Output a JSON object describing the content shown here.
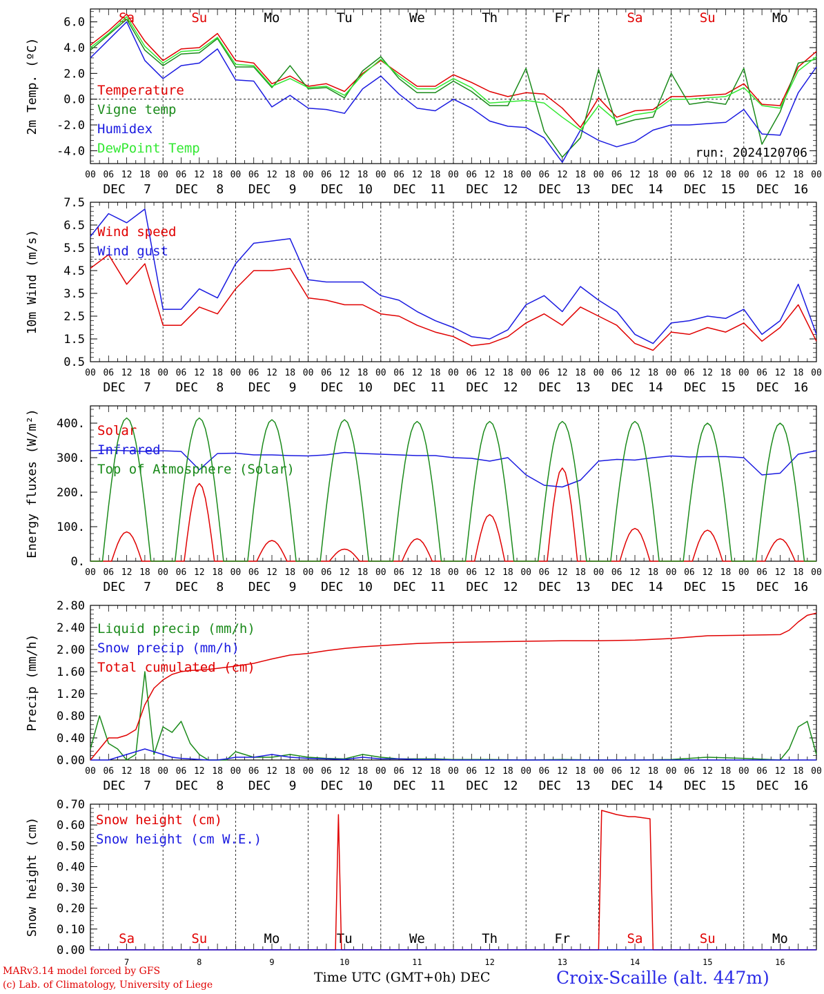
{
  "colors": {
    "red": "#e00000",
    "green": "#1a8a1a",
    "blue": "#1a1ae0",
    "lime": "#33e833",
    "black": "#000000"
  },
  "days": [
    {
      "abbr": "Sa",
      "weekend": true,
      "month": "DEC",
      "date": "7"
    },
    {
      "abbr": "Su",
      "weekend": true,
      "month": "DEC",
      "date": "8"
    },
    {
      "abbr": "Mo",
      "weekend": false,
      "month": "DEC",
      "date": "9"
    },
    {
      "abbr": "Tu",
      "weekend": false,
      "month": "DEC",
      "date": "10"
    },
    {
      "abbr": "We",
      "weekend": false,
      "month": "DEC",
      "date": "11"
    },
    {
      "abbr": "Th",
      "weekend": false,
      "month": "DEC",
      "date": "12"
    },
    {
      "abbr": "Fr",
      "weekend": false,
      "month": "DEC",
      "date": "13"
    },
    {
      "abbr": "Sa",
      "weekend": true,
      "month": "DEC",
      "date": "14"
    },
    {
      "abbr": "Su",
      "weekend": true,
      "month": "DEC",
      "date": "15"
    },
    {
      "abbr": "Mo",
      "weekend": false,
      "month": "DEC",
      "date": "16"
    }
  ],
  "hour_ticks": [
    "00",
    "06",
    "12",
    "18"
  ],
  "footer": {
    "model": "MARv3.14 model forced by GFS",
    "copyright": "(c) Lab. of Climatology, University of Liege",
    "time_axis": "Time UTC (GMT+0h) DEC",
    "station": "Croix-Scaille (alt. 447m)"
  },
  "chart_data": [
    {
      "type": "line",
      "ylabel": "2m Temp. (ºC)",
      "ylim": [
        -5,
        7
      ],
      "yticks": [
        "-4.0",
        "-2.0",
        "0.0",
        "2.0",
        "4.0",
        "6.0"
      ],
      "yticks_values": [
        -4,
        -2,
        0,
        2,
        4,
        6
      ],
      "reference_line": 0,
      "annotation": "run: 2024120706",
      "x_hours": [
        0,
        6,
        12,
        18,
        24,
        30,
        36,
        42,
        48,
        54,
        60,
        66,
        72,
        78,
        84,
        90,
        96,
        102,
        108,
        114,
        120,
        126,
        132,
        138,
        144,
        150,
        156,
        162,
        168,
        174,
        180,
        186,
        192,
        198,
        204,
        210,
        216,
        222,
        228,
        234,
        240
      ],
      "series": [
        {
          "name": "Temperature",
          "color": "red",
          "values": [
            4.2,
            5.3,
            6.6,
            4.5,
            3.0,
            3.9,
            4.0,
            5.1,
            3.0,
            2.8,
            1.2,
            1.8,
            1.0,
            1.2,
            0.6,
            2.0,
            3.0,
            2.0,
            1.0,
            1.0,
            1.9,
            1.3,
            0.6,
            0.2,
            0.5,
            0.4,
            -0.7,
            -2.2,
            0.1,
            -1.4,
            -0.9,
            -0.8,
            0.2,
            0.2,
            0.3,
            0.4,
            1.2,
            -0.4,
            -0.5,
            2.5,
            3.7
          ]
        },
        {
          "name": "Vigne temp",
          "color": "green",
          "values": [
            3.8,
            5.0,
            6.2,
            3.8,
            2.6,
            3.5,
            3.6,
            4.7,
            2.5,
            2.5,
            0.9,
            2.6,
            0.8,
            0.9,
            0.1,
            2.2,
            3.3,
            1.6,
            0.5,
            0.5,
            1.4,
            0.6,
            -0.5,
            -0.5,
            2.4,
            -2.5,
            -4.5,
            -3.0,
            2.3,
            -2.0,
            -1.6,
            -1.4,
            2.0,
            -0.4,
            -0.2,
            -0.4,
            2.4,
            -3.5,
            -1.0,
            2.8,
            3.1
          ]
        },
        {
          "name": "Humidex",
          "color": "blue",
          "values": [
            3.2,
            4.6,
            6.0,
            3.0,
            1.6,
            2.6,
            2.8,
            3.9,
            1.5,
            1.4,
            -0.6,
            0.3,
            -0.7,
            -0.8,
            -1.1,
            0.8,
            1.8,
            0.4,
            -0.7,
            -0.9,
            0.0,
            -0.7,
            -1.7,
            -2.1,
            -2.2,
            -3.0,
            -4.9,
            -2.4,
            -3.2,
            -3.7,
            -3.3,
            -2.4,
            -2.0,
            -2.0,
            -1.9,
            -1.8,
            -0.8,
            -2.7,
            -2.8,
            0.5,
            2.5
          ]
        },
        {
          "name": "DewPoint Temp",
          "color": "lime",
          "values": [
            4.0,
            5.1,
            6.4,
            4.1,
            2.8,
            3.7,
            3.8,
            4.8,
            2.7,
            2.6,
            1.0,
            1.6,
            0.9,
            1.0,
            0.3,
            1.9,
            3.1,
            1.8,
            0.8,
            0.8,
            1.6,
            0.9,
            -0.3,
            -0.2,
            -0.1,
            -0.3,
            -1.4,
            -2.4,
            -0.5,
            -1.7,
            -1.2,
            -1.0,
            0.0,
            0.0,
            0.1,
            0.2,
            0.9,
            -0.5,
            -0.7,
            2.2,
            3.3
          ]
        }
      ]
    },
    {
      "type": "line",
      "ylabel": "10m Wind (m/s)",
      "ylim": [
        0.5,
        7.5
      ],
      "yticks": [
        "0.5",
        "1.5",
        "2.5",
        "3.5",
        "4.5",
        "5.5",
        "6.5",
        "7.5"
      ],
      "yticks_values": [
        0.5,
        1.5,
        2.5,
        3.5,
        4.5,
        5.5,
        6.5,
        7.5
      ],
      "reference_line": 5,
      "x_hours": [
        0,
        6,
        12,
        18,
        24,
        30,
        36,
        42,
        48,
        54,
        60,
        66,
        72,
        78,
        84,
        90,
        96,
        102,
        108,
        114,
        120,
        126,
        132,
        138,
        144,
        150,
        156,
        162,
        168,
        174,
        180,
        186,
        192,
        198,
        204,
        210,
        216,
        222,
        228,
        234,
        240
      ],
      "series": [
        {
          "name": "Wind speed",
          "color": "red",
          "values": [
            4.6,
            5.2,
            3.9,
            4.8,
            2.1,
            2.1,
            2.9,
            2.6,
            3.7,
            4.5,
            4.5,
            4.6,
            3.3,
            3.2,
            3.0,
            3.0,
            2.6,
            2.5,
            2.1,
            1.8,
            1.6,
            1.2,
            1.3,
            1.6,
            2.2,
            2.6,
            2.1,
            2.9,
            2.5,
            2.1,
            1.3,
            1.0,
            1.8,
            1.7,
            2.0,
            1.8,
            2.2,
            1.4,
            2.0,
            3.0,
            1.4
          ]
        },
        {
          "name": "Wind gust",
          "color": "blue",
          "values": [
            6.0,
            7.0,
            6.6,
            7.2,
            2.8,
            2.8,
            3.7,
            3.3,
            4.8,
            5.7,
            5.8,
            5.9,
            4.1,
            4.0,
            4.0,
            4.0,
            3.4,
            3.2,
            2.7,
            2.3,
            2.0,
            1.6,
            1.5,
            1.9,
            3.0,
            3.4,
            2.7,
            3.8,
            3.2,
            2.7,
            1.7,
            1.3,
            2.2,
            2.3,
            2.5,
            2.4,
            2.8,
            1.7,
            2.3,
            3.9,
            1.7
          ]
        }
      ]
    },
    {
      "type": "line",
      "ylabel": "Energy fluxes (W/m²)",
      "ylim": [
        0,
        450
      ],
      "yticks": [
        "0.",
        "100.",
        "200.",
        "300.",
        "400."
      ],
      "yticks_values": [
        0,
        100,
        200,
        300,
        400
      ],
      "series": [
        {
          "name": "Solar",
          "color": "red",
          "peaks": [
            {
              "day": 0,
              "peak": 85
            },
            {
              "day": 1,
              "peak": 225
            },
            {
              "day": 2,
              "peak": 60
            },
            {
              "day": 3,
              "peak": 35
            },
            {
              "day": 4,
              "peak": 65
            },
            {
              "day": 5,
              "peak": 135
            },
            {
              "day": 6,
              "peak": 270
            },
            {
              "day": 7,
              "peak": 95
            },
            {
              "day": 8,
              "peak": 90
            },
            {
              "day": 9,
              "peak": 65
            }
          ]
        },
        {
          "name": "Infrared",
          "color": "blue",
          "x_hours": [
            0,
            6,
            12,
            18,
            24,
            30,
            36,
            42,
            48,
            54,
            60,
            66,
            72,
            78,
            84,
            90,
            96,
            102,
            108,
            114,
            120,
            126,
            132,
            138,
            144,
            150,
            156,
            162,
            168,
            174,
            180,
            186,
            192,
            198,
            204,
            210,
            216,
            222,
            228,
            234,
            240
          ],
          "values": [
            320,
            322,
            320,
            318,
            320,
            318,
            265,
            312,
            313,
            308,
            308,
            306,
            305,
            308,
            315,
            312,
            310,
            308,
            306,
            306,
            300,
            298,
            290,
            300,
            250,
            220,
            215,
            235,
            290,
            295,
            293,
            300,
            305,
            302,
            303,
            303,
            300,
            250,
            255,
            310,
            320
          ]
        },
        {
          "name": "Top of Atmosphere (Solar)",
          "color": "green",
          "peaks": [
            {
              "day": 0,
              "peak": 415
            },
            {
              "day": 1,
              "peak": 415
            },
            {
              "day": 2,
              "peak": 410
            },
            {
              "day": 3,
              "peak": 410
            },
            {
              "day": 4,
              "peak": 405
            },
            {
              "day": 5,
              "peak": 405
            },
            {
              "day": 6,
              "peak": 405
            },
            {
              "day": 7,
              "peak": 405
            },
            {
              "day": 8,
              "peak": 400
            },
            {
              "day": 9,
              "peak": 400
            }
          ]
        }
      ]
    },
    {
      "type": "line",
      "ylabel": "Precip (mm/h)",
      "ylim": [
        0,
        2.8
      ],
      "yticks": [
        "0.00",
        "0.40",
        "0.80",
        "1.20",
        "1.60",
        "2.00",
        "2.40",
        "2.80"
      ],
      "yticks_values": [
        0,
        0.4,
        0.8,
        1.2,
        1.6,
        2.0,
        2.4,
        2.8
      ],
      "x_hours": [
        0,
        3,
        6,
        9,
        12,
        15,
        18,
        21,
        24,
        27,
        30,
        33,
        36,
        39,
        42,
        45,
        48,
        54,
        60,
        66,
        72,
        78,
        84,
        90,
        96,
        102,
        108,
        114,
        120,
        132,
        144,
        156,
        168,
        180,
        192,
        204,
        216,
        228,
        231,
        234,
        237,
        240
      ],
      "series": [
        {
          "name": "Liquid precip (mm/h)",
          "color": "green",
          "values": [
            0.2,
            0.8,
            0.3,
            0.2,
            0.0,
            0.1,
            1.6,
            0.1,
            0.6,
            0.5,
            0.7,
            0.3,
            0.1,
            0.0,
            0.0,
            0.0,
            0.15,
            0.05,
            0.05,
            0.1,
            0.05,
            0.03,
            0.02,
            0.1,
            0.05,
            0.02,
            0.02,
            0.02,
            0.01,
            0.01,
            0.0,
            0.01,
            0.0,
            0.0,
            0.01,
            0.05,
            0.03,
            0.0,
            0.2,
            0.6,
            0.7,
            0.1
          ]
        },
        {
          "name": "Snow precip (mm/h)",
          "color": "blue",
          "values": [
            0.0,
            0.0,
            0.0,
            0.05,
            0.1,
            0.15,
            0.2,
            0.15,
            0.1,
            0.05,
            0.03,
            0.02,
            0.01,
            0.0,
            0.0,
            0.02,
            0.05,
            0.05,
            0.1,
            0.05,
            0.03,
            0.02,
            0.01,
            0.05,
            0.02,
            0.02,
            0.01,
            0.01,
            0.0,
            0.0,
            0.0,
            0.0,
            0.0,
            0.0,
            0.0,
            0.0,
            0.0,
            0.0,
            0.0,
            0.0,
            0.0,
            0.0
          ]
        },
        {
          "name": "Total cumulated (cm)",
          "color": "red",
          "values": [
            0.0,
            0.2,
            0.4,
            0.4,
            0.45,
            0.55,
            1.0,
            1.3,
            1.45,
            1.55,
            1.6,
            1.62,
            1.63,
            1.64,
            1.66,
            1.68,
            1.7,
            1.75,
            1.83,
            1.9,
            1.93,
            1.98,
            2.02,
            2.05,
            2.07,
            2.09,
            2.11,
            2.12,
            2.13,
            2.14,
            2.15,
            2.16,
            2.16,
            2.17,
            2.2,
            2.25,
            2.26,
            2.27,
            2.35,
            2.5,
            2.62,
            2.66
          ]
        }
      ]
    },
    {
      "type": "line",
      "ylabel": "Snow height (cm)",
      "ylim": [
        0,
        0.7
      ],
      "yticks": [
        "0.00",
        "0.10",
        "0.20",
        "0.30",
        "0.40",
        "0.50",
        "0.60",
        "0.70"
      ],
      "yticks_values": [
        0,
        0.1,
        0.2,
        0.3,
        0.4,
        0.5,
        0.6,
        0.7
      ],
      "series": [
        {
          "name": "Snow height (cm)",
          "color": "red",
          "x_hours": [
            0,
            81,
            82,
            83,
            168,
            169,
            174,
            178,
            180,
            185,
            186,
            240
          ],
          "values": [
            0,
            0,
            0.65,
            0,
            0,
            0.67,
            0.65,
            0.64,
            0.64,
            0.63,
            0,
            0
          ]
        },
        {
          "name": "Snow height (cm W.E.)",
          "color": "blue",
          "x_hours": [
            0,
            240
          ],
          "values": [
            0,
            0
          ]
        }
      ]
    }
  ]
}
